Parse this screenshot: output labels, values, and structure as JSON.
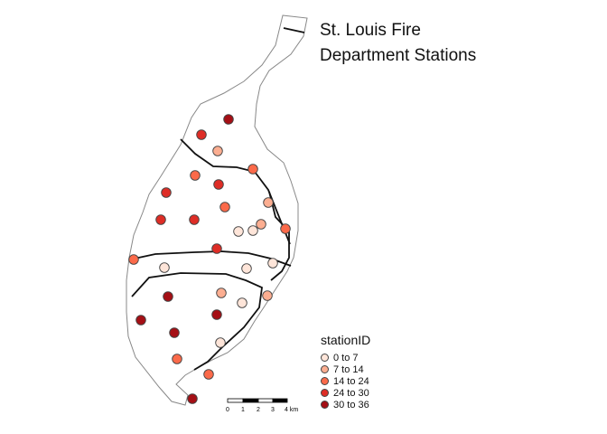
{
  "title_lines": [
    "St. Louis Fire",
    "Department Stations"
  ],
  "legend": {
    "title": "stationID",
    "items": [
      {
        "label": "0 to 7",
        "color": "#fee5d9"
      },
      {
        "label": "7 to 14",
        "color": "#fcae91"
      },
      {
        "label": "14 to 24",
        "color": "#fb6a4a"
      },
      {
        "label": "24 to 30",
        "color": "#de2d26"
      },
      {
        "label": "30 to 36",
        "color": "#a50f15"
      }
    ]
  },
  "scale_bar": {
    "labels": [
      "0",
      "1",
      "2",
      "3",
      "4 km"
    ]
  },
  "stations": [
    {
      "class": 4
    },
    {
      "class": 3
    },
    {
      "class": 1
    },
    {
      "class": 2
    },
    {
      "class": 2
    },
    {
      "class": 3
    },
    {
      "class": 3
    },
    {
      "class": 1
    },
    {
      "class": 2
    },
    {
      "class": 3
    },
    {
      "class": 3
    },
    {
      "class": 1
    },
    {
      "class": 0
    },
    {
      "class": 0
    },
    {
      "class": 2
    },
    {
      "class": 2
    },
    {
      "class": 3
    },
    {
      "class": 0
    },
    {
      "class": 0
    },
    {
      "class": 0
    },
    {
      "class": 1
    },
    {
      "class": 1
    },
    {
      "class": 4
    },
    {
      "class": 0
    },
    {
      "class": 4
    },
    {
      "class": 4
    },
    {
      "class": 4
    },
    {
      "class": 0
    },
    {
      "class": 2
    },
    {
      "class": 2
    },
    {
      "class": 4
    },
    {
      "class": 3
    }
  ]
}
